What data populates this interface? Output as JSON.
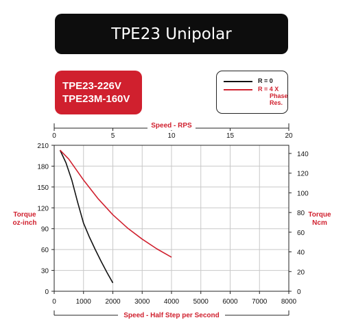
{
  "title": "TPE23 Unipolar",
  "models": [
    "TPE23-226V",
    "TPE23M-160V"
  ],
  "legend": [
    {
      "label": "R = 0",
      "color": "#111111"
    },
    {
      "label": "R = 4 X Phase Res.",
      "lines": [
        "R = 4 X",
        "Phase",
        "Res."
      ],
      "color": "#d0202e"
    }
  ],
  "colors": {
    "black_series": "#111111",
    "red_series": "#d0202e",
    "grid": "#c8c8c8",
    "accent_text": "#d0202e"
  },
  "chart_data": {
    "type": "line",
    "title": "TPE23 Unipolar",
    "x_top_label": "Speed - RPS",
    "x_top_ticks": [
      0,
      5,
      10,
      15,
      20
    ],
    "x_top_lim": [
      0,
      20
    ],
    "xlabel": "Speed - Half Step per Second",
    "x_ticks": [
      0,
      1000,
      2000,
      3000,
      4000,
      5000,
      6000,
      7000,
      8000
    ],
    "xlim": [
      0,
      8000
    ],
    "ylabel_left": [
      "Torque",
      "oz-inch"
    ],
    "y_left_ticks": [
      0,
      30,
      60,
      90,
      120,
      150,
      180,
      210
    ],
    "ylim_left": [
      0,
      210
    ],
    "ylabel_right": [
      "Torque",
      "Ncm"
    ],
    "y_right_ticks": [
      0,
      20,
      40,
      60,
      80,
      100,
      120,
      140
    ],
    "ylim_right": [
      0,
      148.3
    ],
    "grid": true,
    "series": [
      {
        "name": "R = 0",
        "color": "#111111",
        "x": [
          200,
          400,
          600,
          800,
          1000,
          1200,
          1400,
          1600,
          1800,
          2000
        ],
        "y": [
          203,
          185,
          160,
          128,
          98,
          78,
          60,
          43,
          27,
          12
        ]
      },
      {
        "name": "R = 4 X Phase Res.",
        "color": "#d0202e",
        "x": [
          200,
          500,
          1000,
          1500,
          2000,
          2500,
          3000,
          3500,
          4000
        ],
        "y": [
          203,
          190,
          160,
          133,
          110,
          91,
          75,
          61,
          49
        ]
      }
    ]
  }
}
